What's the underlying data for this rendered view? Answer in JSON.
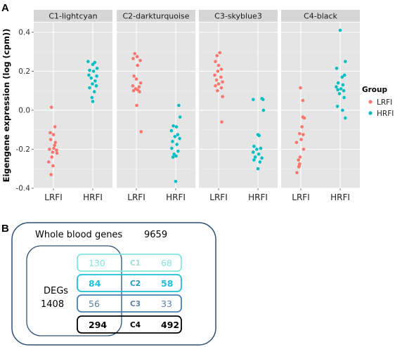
{
  "panels": {
    "a_label": "A",
    "b_label": "B"
  },
  "chart_data": {
    "type": "scatter",
    "ylabel": "Eigengene expression (log (cpm))",
    "xlabel": "",
    "ylim": [
      -0.4,
      0.45
    ],
    "yticks": [
      -0.4,
      -0.2,
      0.0,
      0.2,
      0.4
    ],
    "ytick_labels": [
      "-0.4",
      "-0.2",
      "0.0",
      "0.2",
      "0.4"
    ],
    "categories": [
      "LRFI",
      "HRFI"
    ],
    "grid": true,
    "legend": {
      "title": "Group",
      "placement": "right",
      "entries": [
        {
          "label": "LRFI",
          "color": "#f8766d"
        },
        {
          "label": "HRFI",
          "color": "#00bfc4"
        }
      ]
    },
    "facets": [
      {
        "name": "C1-lightcyan",
        "series": [
          {
            "group": "LRFI",
            "points": [
              [
                -0.05,
                0.015
              ],
              [
                0.04,
                -0.085
              ],
              [
                -0.08,
                -0.115
              ],
              [
                0.0,
                -0.125
              ],
              [
                -0.07,
                -0.15
              ],
              [
                0.05,
                -0.165
              ],
              [
                0.03,
                -0.18
              ],
              [
                0.01,
                -0.195
              ],
              [
                -0.1,
                -0.2
              ],
              [
                0.08,
                -0.205
              ],
              [
                -0.02,
                -0.215
              ],
              [
                0.09,
                -0.22
              ],
              [
                -0.04,
                -0.24
              ],
              [
                -0.12,
                -0.265
              ],
              [
                -0.01,
                -0.285
              ],
              [
                -0.06,
                -0.33
              ]
            ]
          },
          {
            "group": "HRFI",
            "points": [
              [
                -0.12,
                0.25
              ],
              [
                0.05,
                0.245
              ],
              [
                0.0,
                0.235
              ],
              [
                0.11,
                0.215
              ],
              [
                -0.08,
                0.205
              ],
              [
                0.02,
                0.2
              ],
              [
                -0.1,
                0.18
              ],
              [
                0.1,
                0.175
              ],
              [
                -0.04,
                0.165
              ],
              [
                0.06,
                0.15
              ],
              [
                -0.01,
                0.135
              ],
              [
                0.09,
                0.125
              ],
              [
                -0.08,
                0.115
              ],
              [
                0.04,
                0.095
              ],
              [
                -0.02,
                0.065
              ],
              [
                0.0,
                0.045
              ]
            ]
          }
        ]
      },
      {
        "name": "C2-darkturquoise",
        "series": [
          {
            "group": "LRFI",
            "points": [
              [
                -0.04,
                0.29
              ],
              [
                0.02,
                0.275
              ],
              [
                -0.08,
                0.265
              ],
              [
                0.1,
                0.255
              ],
              [
                0.03,
                0.23
              ],
              [
                -0.06,
                0.175
              ],
              [
                0.0,
                0.16
              ],
              [
                0.11,
                0.14
              ],
              [
                -0.09,
                0.125
              ],
              [
                0.07,
                0.12
              ],
              [
                -0.02,
                0.11
              ],
              [
                0.03,
                0.105
              ],
              [
                -0.07,
                0.1
              ],
              [
                0.08,
                0.095
              ],
              [
                0.01,
                0.025
              ],
              [
                0.12,
                -0.11
              ]
            ]
          },
          {
            "group": "HRFI",
            "points": [
              [
                0.08,
                0.025
              ],
              [
                0.11,
                -0.035
              ],
              [
                -0.06,
                -0.08
              ],
              [
                0.02,
                -0.085
              ],
              [
                -0.11,
                -0.105
              ],
              [
                0.05,
                -0.125
              ],
              [
                -0.02,
                -0.135
              ],
              [
                0.1,
                -0.145
              ],
              [
                -0.08,
                -0.16
              ],
              [
                0.03,
                -0.175
              ],
              [
                -0.1,
                -0.195
              ],
              [
                0.06,
                -0.21
              ],
              [
                -0.04,
                -0.225
              ],
              [
                0.01,
                -0.235
              ],
              [
                -0.07,
                -0.24
              ],
              [
                0.0,
                -0.365
              ]
            ]
          }
        ]
      },
      {
        "name": "C3-skyblue3",
        "series": [
          {
            "group": "LRFI",
            "points": [
              [
                0.03,
                0.295
              ],
              [
                -0.04,
                0.28
              ],
              [
                -0.08,
                0.25
              ],
              [
                0.0,
                0.23
              ],
              [
                0.07,
                0.21
              ],
              [
                -0.02,
                0.2
              ],
              [
                -0.1,
                0.18
              ],
              [
                0.06,
                0.17
              ],
              [
                -0.05,
                0.155
              ],
              [
                0.1,
                0.145
              ],
              [
                0.0,
                0.135
              ],
              [
                -0.08,
                0.125
              ],
              [
                0.07,
                0.115
              ],
              [
                -0.03,
                0.1
              ],
              [
                0.1,
                0.07
              ],
              [
                0.08,
                -0.06
              ]
            ]
          },
          {
            "group": "HRFI",
            "points": [
              [
                0.1,
                0.06
              ],
              [
                -0.12,
                0.055
              ],
              [
                0.13,
                0.055
              ],
              [
                0.14,
                0.0
              ],
              [
                0.0,
                -0.125
              ],
              [
                0.03,
                -0.13
              ],
              [
                -0.1,
                -0.185
              ],
              [
                0.07,
                -0.195
              ],
              [
                -0.03,
                -0.2
              ],
              [
                -0.12,
                -0.215
              ],
              [
                0.02,
                -0.225
              ],
              [
                -0.07,
                -0.24
              ],
              [
                0.1,
                -0.245
              ],
              [
                -0.1,
                -0.255
              ],
              [
                0.05,
                -0.265
              ],
              [
                0.0,
                -0.3
              ]
            ]
          }
        ]
      },
      {
        "name": "C4-black",
        "series": [
          {
            "group": "LRFI",
            "points": [
              [
                -0.01,
                0.115
              ],
              [
                0.05,
                0.05
              ],
              [
                0.05,
                -0.035
              ],
              [
                0.09,
                -0.04
              ],
              [
                0.03,
                -0.085
              ],
              [
                -0.03,
                -0.12
              ],
              [
                0.06,
                -0.125
              ],
              [
                0.01,
                -0.15
              ],
              [
                -0.11,
                -0.165
              ],
              [
                0.07,
                -0.2
              ],
              [
                -0.02,
                -0.24
              ],
              [
                -0.06,
                -0.255
              ],
              [
                -0.03,
                -0.275
              ],
              [
                -0.04,
                -0.285
              ],
              [
                -0.05,
                -0.29
              ],
              [
                -0.1,
                -0.32
              ]
            ]
          },
          {
            "group": "HRFI",
            "points": [
              [
                0.0,
                0.41
              ],
              [
                0.13,
                0.25
              ],
              [
                -0.09,
                0.215
              ],
              [
                0.11,
                0.18
              ],
              [
                0.05,
                0.17
              ],
              [
                -0.05,
                0.14
              ],
              [
                0.07,
                0.13
              ],
              [
                -0.1,
                0.12
              ],
              [
                0.02,
                0.11
              ],
              [
                -0.06,
                0.105
              ],
              [
                0.09,
                0.1
              ],
              [
                -0.02,
                0.085
              ],
              [
                0.1,
                0.065
              ],
              [
                -0.07,
                0.02
              ],
              [
                0.06,
                0.0
              ],
              [
                0.13,
                -0.04
              ]
            ]
          }
        ]
      }
    ]
  },
  "venn": {
    "whole_label": "Whole blood genes",
    "whole_count": "9659",
    "degs_label": "DEGs",
    "degs_count": "1408",
    "rows": [
      {
        "module": "C1",
        "left": "130",
        "right": "68",
        "color": "#7fe8de",
        "text_color": "#7fe8de",
        "mid_color": "#9fdcd8"
      },
      {
        "module": "C2",
        "left": "84",
        "right": "58",
        "color": "#1fbfd6",
        "text_color": "#1fbfd6",
        "mid_color": "#1a9fc6"
      },
      {
        "module": "C3",
        "left": "56",
        "right": "33",
        "color": "#4a7fb0",
        "text_color": "#5a7fa8",
        "mid_color": "#5a7fa8"
      },
      {
        "module": "C4",
        "left": "294",
        "right": "492",
        "color": "#000000",
        "text_color": "#000000",
        "mid_color": "#000000"
      }
    ]
  },
  "colors": {
    "panel_bg": "#e5e5e5",
    "strip_bg": "#d6d6d6",
    "grid": "#ffffff",
    "outer_box": "#2f4f78",
    "lrfi": "#f8766d",
    "hrfi": "#00bfc4"
  }
}
